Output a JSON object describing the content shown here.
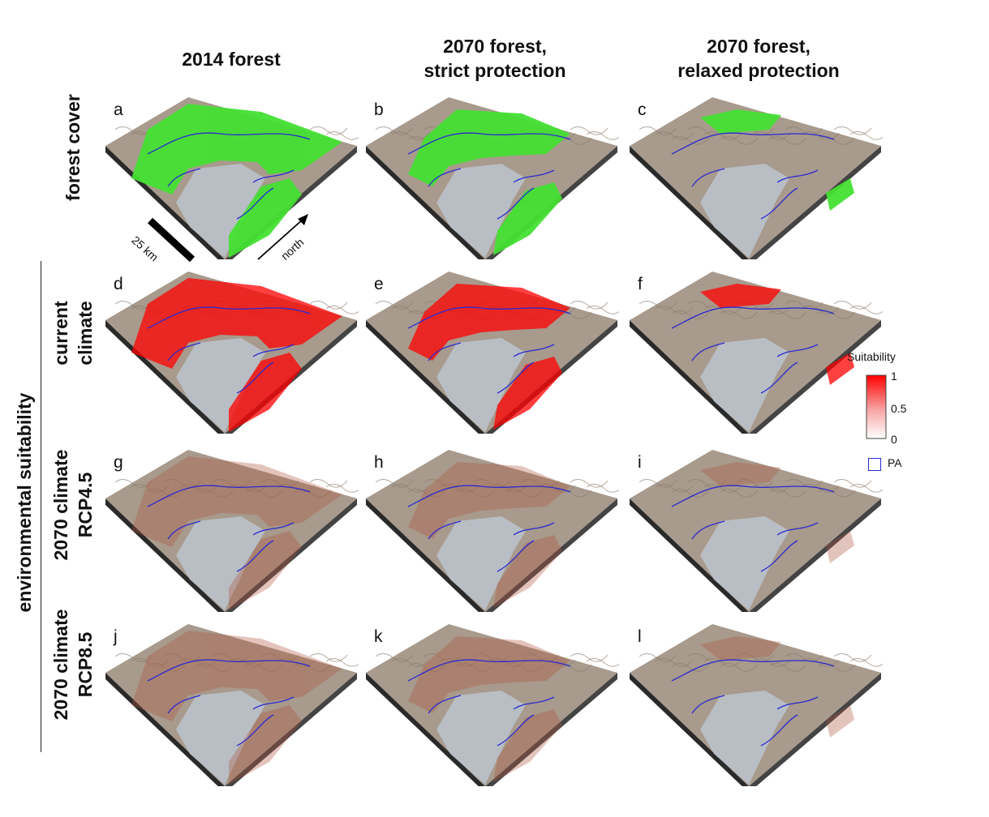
{
  "columns": [
    {
      "line1": "2014 forest",
      "line2": ""
    },
    {
      "line1": "2070 forest,",
      "line2": "strict protection"
    },
    {
      "line1": "2070 forest,",
      "line2": "relaxed protection"
    }
  ],
  "row_group_label": "environmental suitability",
  "rows": [
    {
      "line1": "forest cover",
      "line2": "",
      "panels": [
        "a",
        "b",
        "c"
      ]
    },
    {
      "line1": "current",
      "line2": "climate",
      "panels": [
        "d",
        "e",
        "f"
      ]
    },
    {
      "line1": "2070 climate",
      "line2": "RCP4.5",
      "panels": [
        "g",
        "h",
        "i"
      ]
    },
    {
      "line1": "2070 climate",
      "line2": "RCP8.5",
      "panels": [
        "j",
        "k",
        "l"
      ]
    }
  ],
  "scale_bar_label": "25 km",
  "north_label": "north",
  "legend": {
    "title": "Suitability",
    "ticks": [
      "1",
      "0.5",
      "0"
    ],
    "pa_label": "PA"
  },
  "colors": {
    "forest": "#44e033",
    "suitability_high": "#ff0000",
    "suitability_low": "#ffffff",
    "protected_area": "#2a2ad0",
    "water": "#b8bec4",
    "terrain": "#a89a8c"
  }
}
